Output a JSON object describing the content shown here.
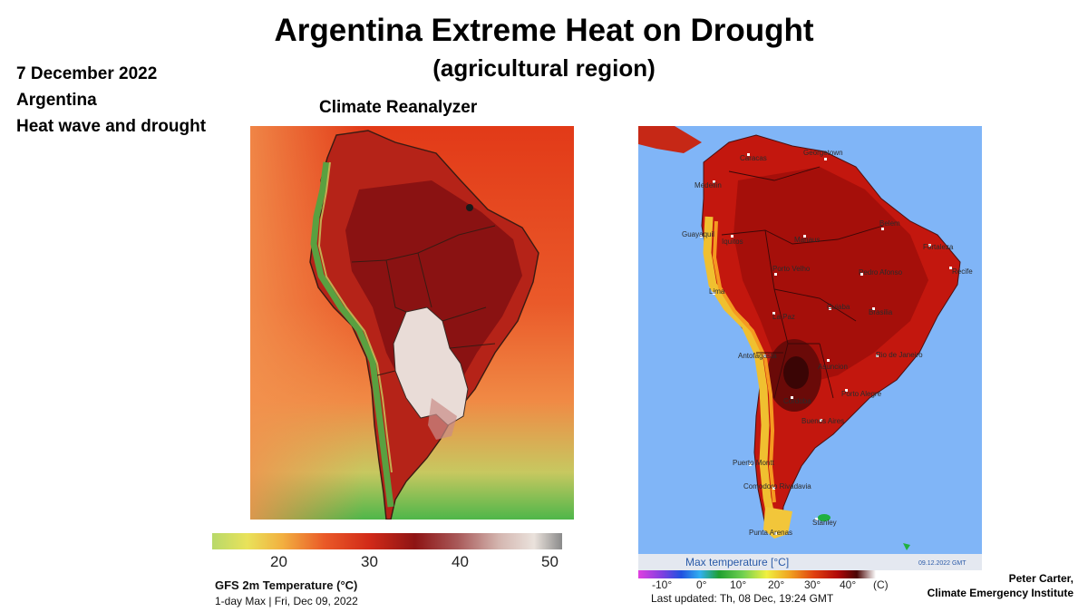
{
  "title": "Argentina Extreme Heat on Drought",
  "subtitle": "(agricultural region)",
  "info": {
    "date": "7 December 2022",
    "country": "Argentina",
    "event": "Heat wave and drought"
  },
  "left_map": {
    "source_label": "Climate Reanalyzer",
    "colorbar_ticks": [
      "20",
      "30",
      "40",
      "50"
    ],
    "caption_title": "GFS 2m Temperature (°C)",
    "caption_sub": "1-day Max | Fri, Dec 09, 2022"
  },
  "right_map": {
    "legend_title": "Max temperature [°C]",
    "date_stamp": "09.12.2022 GMT",
    "legend_ticks": [
      "-10°",
      "0°",
      "10°",
      "20°",
      "30°",
      "40°",
      "(C)"
    ],
    "last_updated": "Last updated: Th, 08 Dec, 19:24 GMT",
    "cities": {
      "caracas": "Caracas",
      "georgetown": "Georgetown",
      "medellin": "Medellin",
      "guayaquil": "Guayaquil",
      "iquitos": "Iquitos",
      "manaus": "Manaus",
      "belem": "Belem",
      "fortaleza": "Fortaleza",
      "recife": "Recife",
      "porto_velho": "Porto Velho",
      "pedro_afonso": "Pedro Afonso",
      "lima": "Lima",
      "cuiaba": "Cuiaba",
      "brasilia": "Brasilia",
      "la_paz": "La Paz",
      "antofagasta": "Antofagasta",
      "asuncion": "Asuncion",
      "rio": "Rio de Janeiro",
      "cordoba": "Cordoba",
      "porto_alegre": "Porto Alegre",
      "buenos_aires": "Buenos Aires",
      "puerto_montt": "Puerto Montt",
      "comodoro": "Comodoro Rivadavia",
      "stanley": "Stanley",
      "punta_arenas": "Punta Arenas"
    }
  },
  "credit": {
    "name": "Peter Carter,",
    "org": "Climate Emergency Institute"
  },
  "colors": {
    "ocean_left": "#e0401e",
    "ocean_right": "#80b5f7",
    "hot": "#8c1010",
    "extreme": "#e8dcd8",
    "cool": "#f0d040"
  }
}
